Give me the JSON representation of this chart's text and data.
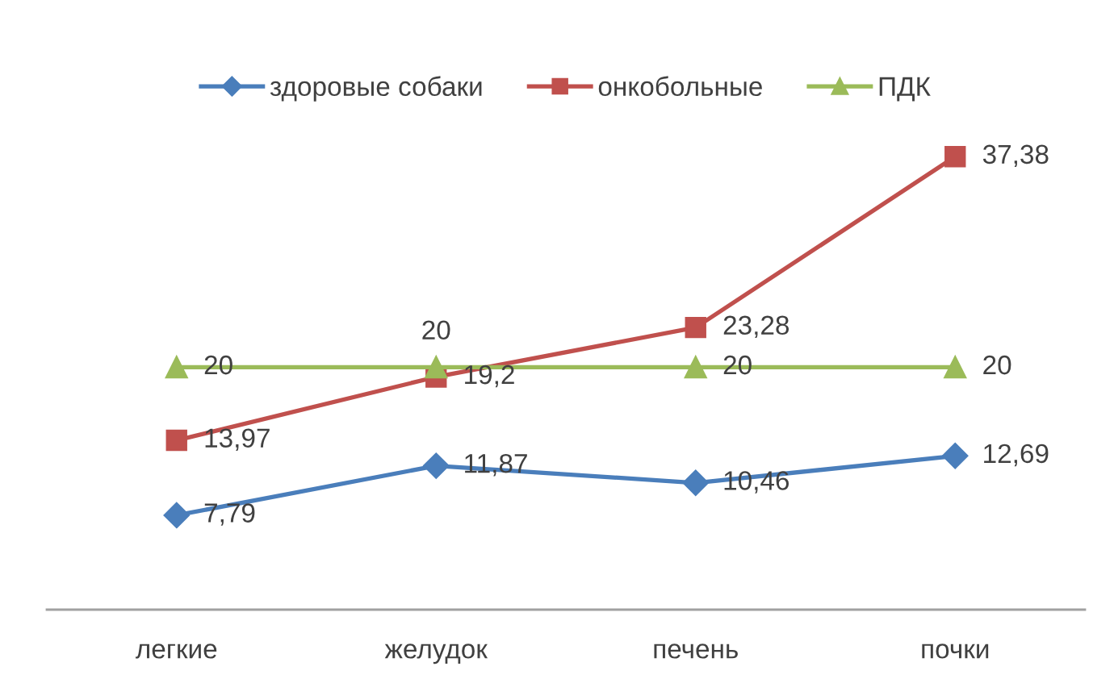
{
  "chart_data": {
    "type": "line",
    "categories": [
      "легкие",
      "желудок",
      "печень",
      "почки"
    ],
    "series": [
      {
        "name": "здоровые собаки",
        "color": "#4a7ebb",
        "marker": "diamond",
        "values": [
          7.79,
          11.87,
          10.46,
          12.69
        ],
        "value_labels": [
          "7,79",
          "11,87",
          "10,46",
          "12,69"
        ]
      },
      {
        "name": "онкобольные",
        "color": "#c0504d",
        "marker": "square",
        "values": [
          13.97,
          19.2,
          23.28,
          37.38
        ],
        "value_labels": [
          "13,97",
          "19,2",
          "23,28",
          "37,38"
        ]
      },
      {
        "name": "ПДК",
        "color": "#9bbb59",
        "marker": "triangle",
        "values": [
          20,
          20,
          20,
          20
        ],
        "value_labels": [
          "20",
          "20",
          "20",
          "20"
        ]
      }
    ],
    "tick_labels": "x",
    "legend": "top",
    "grid": false,
    "line_style": "solid"
  }
}
